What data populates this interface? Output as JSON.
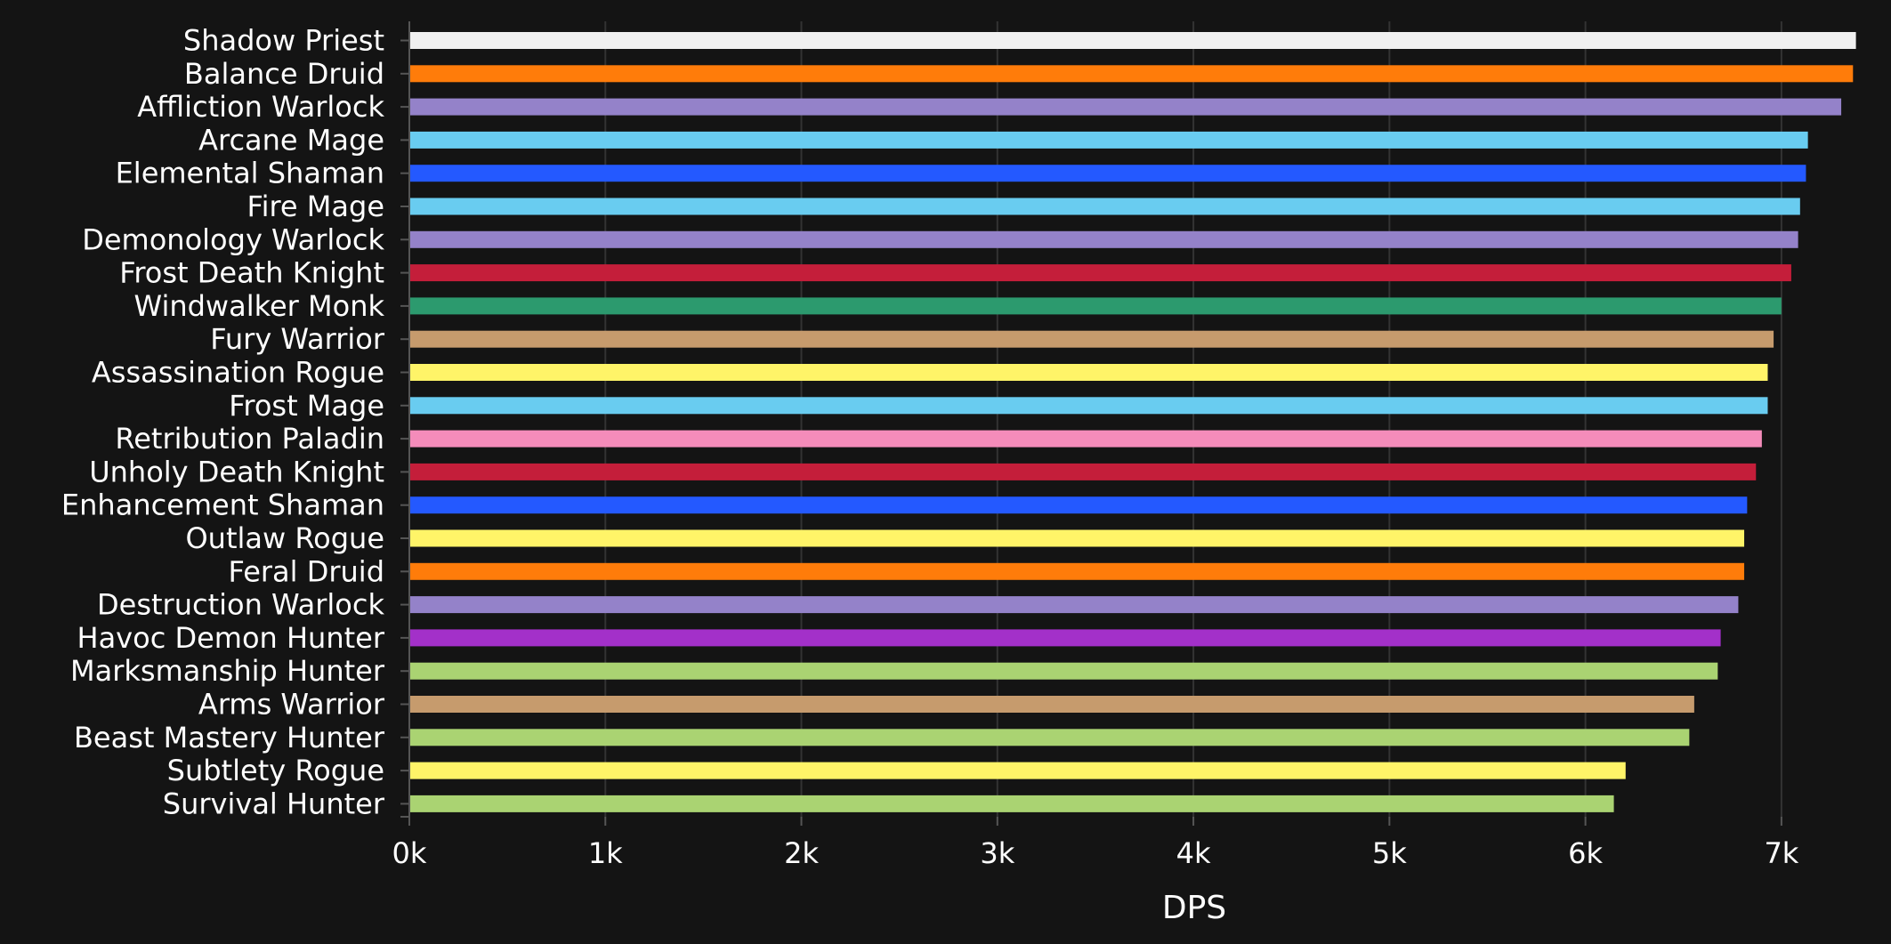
{
  "chart_data": {
    "type": "bar",
    "orientation": "horizontal",
    "title": "",
    "xlabel": "DPS",
    "ylabel": "",
    "xlim": [
      0,
      7400
    ],
    "x_ticks": [
      0,
      1000,
      2000,
      3000,
      4000,
      5000,
      6000,
      7000
    ],
    "x_tick_labels": [
      "0k",
      "1k",
      "2k",
      "3k",
      "4k",
      "5k",
      "6k",
      "7k"
    ],
    "grid": "vertical",
    "legend": "none",
    "categories": [
      "Shadow Priest",
      "Balance Druid",
      "Affliction Warlock",
      "Arcane Mage",
      "Elemental Shaman",
      "Fire Mage",
      "Demonology Warlock",
      "Frost Death Knight",
      "Windwalker Monk",
      "Fury Warrior",
      "Assassination Rogue",
      "Frost Mage",
      "Retribution Paladin",
      "Unholy Death Knight",
      "Enhancement Shaman",
      "Outlaw Rogue",
      "Feral Druid",
      "Destruction Warlock",
      "Havoc Demon Hunter",
      "Marksmanship Hunter",
      "Arms Warrior",
      "Beast Mastery Hunter",
      "Subtlety Rogue",
      "Survival Hunter"
    ],
    "values": [
      7380,
      7365,
      7305,
      7135,
      7125,
      7095,
      7085,
      7050,
      7000,
      6960,
      6930,
      6930,
      6900,
      6870,
      6825,
      6810,
      6810,
      6780,
      6690,
      6675,
      6555,
      6530,
      6205,
      6145
    ],
    "colors": [
      "#F0F0F0",
      "#FF7C0A",
      "#9482C9",
      "#69CCF0",
      "#2459FF",
      "#69CCF0",
      "#9482C9",
      "#C41E3A",
      "#2C9A6E",
      "#C69B6D",
      "#FFF468",
      "#69CCF0",
      "#F48CBA",
      "#C41E3A",
      "#2459FF",
      "#FFF468",
      "#FF7C0A",
      "#9482C9",
      "#A330C9",
      "#AAD372",
      "#C69B6D",
      "#AAD372",
      "#FFF468",
      "#AAD372"
    ],
    "style": {
      "background": "#141414",
      "grid_color": "#333333",
      "axis_color": "#555555",
      "text_color": "#ffffff"
    }
  }
}
